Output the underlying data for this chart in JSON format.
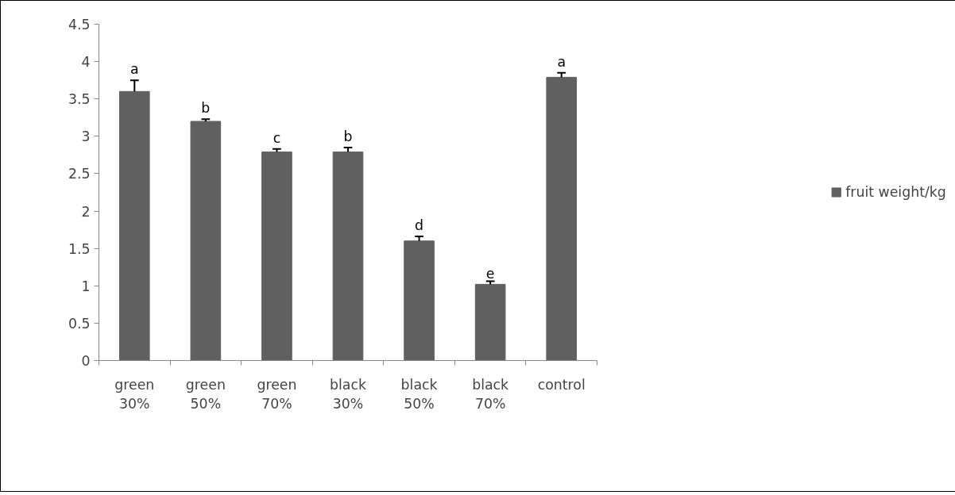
{
  "chart_data": {
    "type": "bar",
    "categories": [
      "green 30%",
      "green 50%",
      "green 70%",
      "black 30%",
      "black 50%",
      "black 70%",
      "control"
    ],
    "series": [
      {
        "name": "fruit weight/kg",
        "color": "#606060",
        "values": [
          3.6,
          3.2,
          2.79,
          2.79,
          1.6,
          1.02,
          3.79
        ],
        "errors": [
          [
            3.6,
            3.75
          ],
          [
            3.2,
            3.23
          ],
          [
            2.79,
            2.83
          ],
          [
            2.79,
            2.85
          ],
          [
            1.6,
            1.66
          ],
          [
            1.02,
            1.06
          ],
          [
            3.79,
            3.85
          ]
        ]
      }
    ],
    "ylim": [
      0,
      4.5
    ],
    "yticks": [
      0,
      0.5,
      1,
      1.5,
      2,
      2.5,
      3,
      3.5,
      4,
      4.5
    ],
    "grid": false,
    "legend": "right",
    "annotations": [
      {
        "text": "a",
        "x": "green 30%",
        "y": 3.75
      },
      {
        "text": "b",
        "x": "green 50%",
        "y": 3.23
      },
      {
        "text": "c",
        "x": "green 70%",
        "y": 2.83
      },
      {
        "text": "b",
        "x": "black 30%",
        "y": 2.85
      },
      {
        "text": "d",
        "x": "black 50%",
        "y": 1.66
      },
      {
        "text": "e",
        "x": "black 70%",
        "y": 1.06
      },
      {
        "text": "a",
        "x": "control",
        "y": 3.85
      }
    ]
  }
}
